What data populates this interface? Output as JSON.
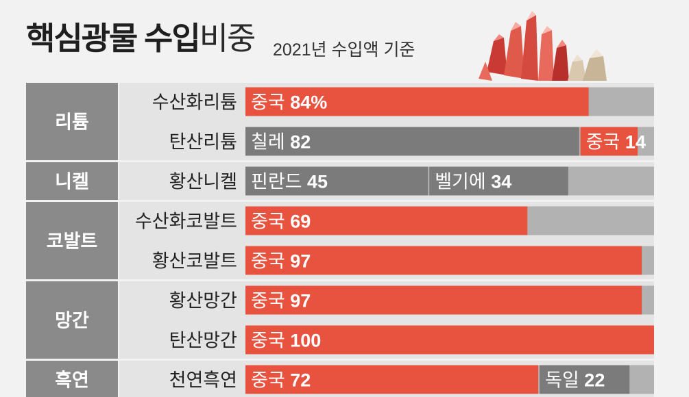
{
  "header": {
    "title_bold": "핵심광물 수입",
    "title_light": "비중",
    "subtitle": "2021년 수입액 기준"
  },
  "colors": {
    "red": "#e8533f",
    "dark_gray": "#7b7b7b",
    "light_gray": "#b2b2b2",
    "category_bg": "#8a8a8a",
    "row_bg": "#e4e4e4",
    "background": "#f2f2f2"
  },
  "chart_data": {
    "type": "bar",
    "orientation": "horizontal",
    "stacked": true,
    "unit_label": "%",
    "xlim": [
      0,
      100
    ],
    "groups": [
      {
        "category": "리튬",
        "rows": [
          {
            "label": "수산화리튬",
            "segments": [
              {
                "country": "중국",
                "value": 84,
                "color": "red",
                "suffix": "%"
              }
            ]
          },
          {
            "label": "탄산리튬",
            "segments": [
              {
                "country": "칠레",
                "value": 82,
                "color": "dark_gray"
              },
              {
                "country": "중국",
                "value": 14,
                "color": "red"
              }
            ]
          }
        ]
      },
      {
        "category": "니켈",
        "rows": [
          {
            "label": "황산니켈",
            "segments": [
              {
                "country": "핀란드",
                "value": 45,
                "color": "dark_gray"
              },
              {
                "country": "벨기에",
                "value": 34,
                "color": "dark_gray"
              }
            ]
          }
        ]
      },
      {
        "category": "코발트",
        "rows": [
          {
            "label": "수산화코발트",
            "segments": [
              {
                "country": "중국",
                "value": 69,
                "color": "red"
              }
            ]
          },
          {
            "label": "황산코발트",
            "segments": [
              {
                "country": "중국",
                "value": 97,
                "color": "red"
              }
            ]
          }
        ]
      },
      {
        "category": "망간",
        "rows": [
          {
            "label": "황산망간",
            "segments": [
              {
                "country": "중국",
                "value": 97,
                "color": "red"
              }
            ]
          },
          {
            "label": "탄산망간",
            "segments": [
              {
                "country": "중국",
                "value": 100,
                "color": "red"
              }
            ]
          }
        ]
      },
      {
        "category": "흑연",
        "rows": [
          {
            "label": "천연흑연",
            "segments": [
              {
                "country": "중국",
                "value": 72,
                "color": "red"
              },
              {
                "country": "독일",
                "value": 22,
                "color": "dark_gray"
              }
            ]
          }
        ]
      }
    ]
  }
}
